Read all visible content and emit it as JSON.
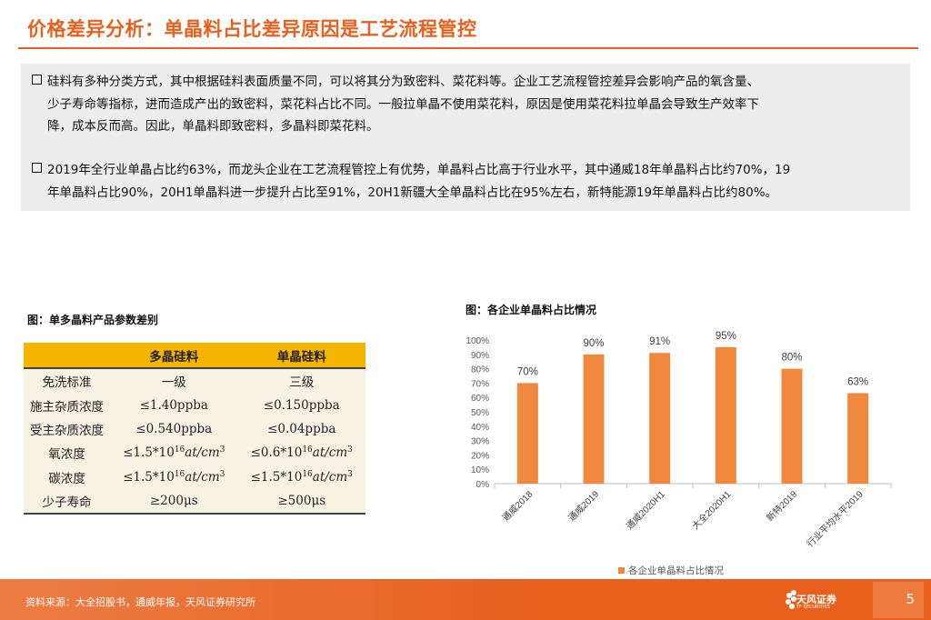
{
  "title": "价格差异分析：单晶料占比差异原因是工艺流程管控",
  "bullets": {
    "b1": [
      "硅料有多种分类方式，其中根据硅料表面质量不同，可以将其分为致密料、菜花料等。企业工艺流程管控差异会影响产品的氧含量、",
      "少子寿命等指标，进而造成产出的致密料，菜花料占比不同。一般拉单晶不使用菜花料，原因是使用菜花料拉单晶会导致生产效率下",
      "降，成本反而高。因此，单晶料即致密料，多晶料即菜花料。"
    ],
    "b2": [
      "2019年全行业单晶占比约63%，而龙头企业在工艺流程管控上有优势，单晶料占比高于行业水平，其中通威18年单晶料占比约70%，19",
      "年单晶料占比90%，20H1单晶料进一步提升占比至91%，20H1新疆大全单晶料占比在95%左右，新特能源19年单晶料占比约80%。"
    ]
  },
  "table": {
    "caption": "图：单多晶料产品参数差别",
    "headers": [
      "多晶硅料",
      "单晶硅料"
    ],
    "rows": [
      {
        "label": "免洗标准",
        "poly": "一级",
        "mono": "三级"
      },
      {
        "label": "施主杂质浓度",
        "poly": "≤1.40ppba",
        "mono": "≤0.150ppba"
      },
      {
        "label": "受主杂质浓度",
        "poly": "≤0.540ppba",
        "mono": "≤0.04ppba"
      },
      {
        "label": "氧浓度",
        "poly_pre": "≤1.5*10",
        "poly_exp": "16",
        "poly_unit": "at/cm",
        "poly_exp2": "3",
        "mono_pre": "≤0.6*10",
        "mono_exp": "16",
        "mono_unit": "at/cm",
        "mono_exp2": "3"
      },
      {
        "label": "碳浓度",
        "poly_pre": "≤1.5*10",
        "poly_exp": "16",
        "poly_unit": "at/cm",
        "poly_exp2": "3",
        "mono_pre": "≤1.5*10",
        "mono_exp": "16",
        "mono_unit": "at/cm",
        "mono_exp2": "3"
      },
      {
        "label": "少子寿命",
        "poly": "≥200μs",
        "mono": "≥500μs"
      }
    ]
  },
  "chart_caption": "图：各企业单晶料占比情况",
  "chart_data": {
    "type": "bar",
    "categories": [
      "通威2018",
      "通威2019",
      "通威2020H1",
      "大全2020H1",
      "新特2019",
      "行业平均水平2019"
    ],
    "values": [
      70,
      90,
      91,
      95,
      80,
      63
    ],
    "value_labels": [
      "70%",
      "90%",
      "91%",
      "95%",
      "80%",
      "63%"
    ],
    "series": [
      {
        "name": "各企业单晶料占比情况",
        "values": [
          70,
          90,
          91,
          95,
          80,
          63
        ]
      }
    ],
    "ylim": [
      0,
      100
    ],
    "yticks": [
      "0%",
      "10%",
      "20%",
      "30%",
      "40%",
      "50%",
      "60%",
      "70%",
      "80%",
      "90%",
      "100%"
    ],
    "legend_position": "bottom",
    "bar_color": "#f0883e",
    "grid": false
  },
  "footer": {
    "source": "资料来源：大全招股书，通威年报，天风证券研究所",
    "logo_name": "天风证券",
    "logo_en": "TF SECURITIES",
    "page": "5"
  },
  "colors": {
    "accent": "#e8601c",
    "table_header": "#f4b400"
  }
}
